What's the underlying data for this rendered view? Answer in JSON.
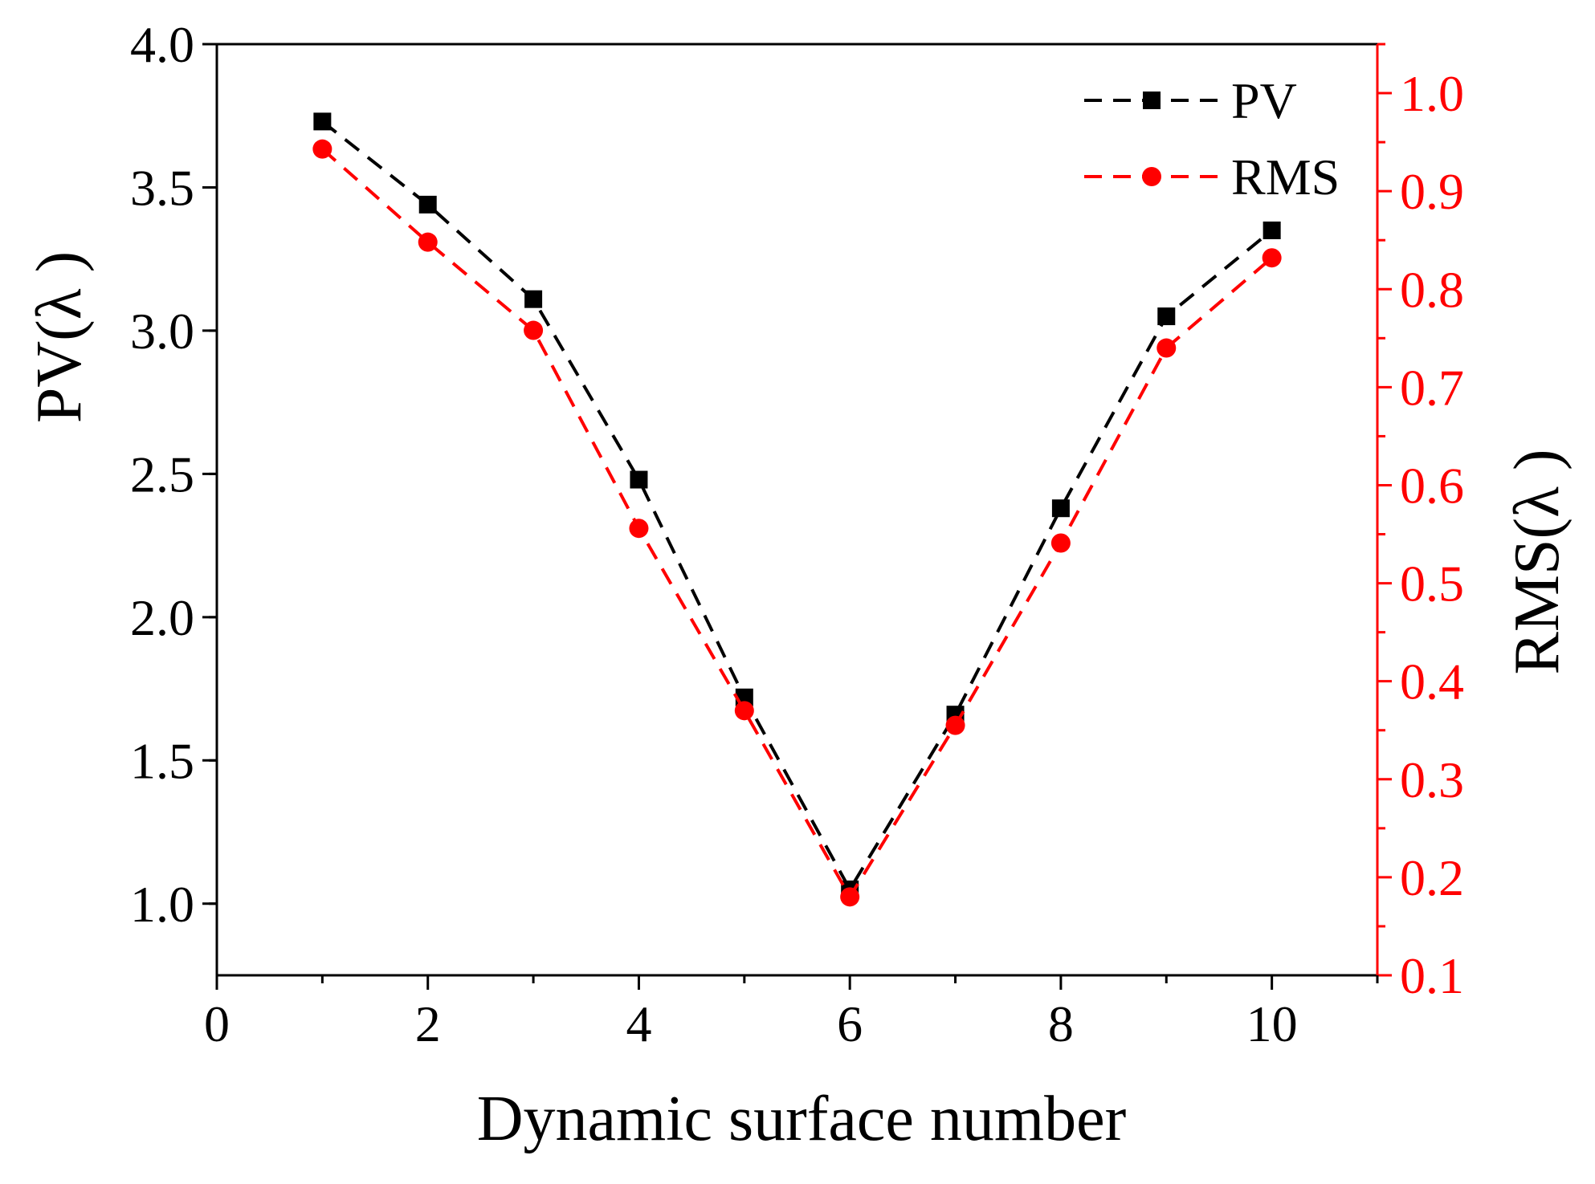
{
  "chart_data": {
    "type": "line",
    "xlabel": "Dynamic surface number",
    "ylabel_left": "PV(λ )",
    "ylabel_right": "RMS(λ )",
    "xlim": [
      0,
      11
    ],
    "ylim_left": [
      0.75,
      4.0
    ],
    "ylim_right": [
      0.1,
      1.05
    ],
    "xticks": [
      "0",
      "2",
      "4",
      "6",
      "8",
      "10"
    ],
    "yticks_left": [
      "1.0",
      "1.5",
      "2.0",
      "2.5",
      "3.0",
      "3.5",
      "4.0"
    ],
    "yticks_right": [
      "0.1",
      "0.2",
      "0.3",
      "0.4",
      "0.5",
      "0.6",
      "0.7",
      "0.8",
      "0.9",
      "1.0"
    ],
    "legend_position": "top-right",
    "grid": false,
    "series": [
      {
        "name": "PV",
        "axis": "left",
        "color": "#000000",
        "marker": "square",
        "line_style": "dashed",
        "x": [
          1,
          2,
          3,
          4,
          5,
          6,
          7,
          8,
          9,
          10
        ],
        "values": [
          3.73,
          3.44,
          3.11,
          2.48,
          1.72,
          1.05,
          1.66,
          2.38,
          3.05,
          3.35
        ]
      },
      {
        "name": "RMS",
        "axis": "right",
        "color": "#ff0000",
        "marker": "circle",
        "line_style": "dashed",
        "x": [
          1,
          2,
          3,
          4,
          5,
          6,
          7,
          8,
          9,
          10
        ],
        "values": [
          0.943,
          0.848,
          0.758,
          0.556,
          0.37,
          0.18,
          0.355,
          0.541,
          0.74,
          0.832
        ]
      }
    ]
  }
}
